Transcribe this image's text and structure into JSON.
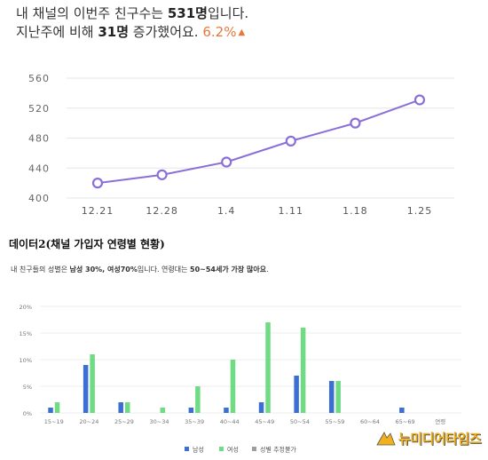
{
  "header": {
    "line1_prefix": "내 채널의 이번주 친구수는 ",
    "line1_value": "531명",
    "line1_suffix": "입니다.",
    "line2_prefix": "지난주에 비해 ",
    "line2_value": "31명",
    "line2_suffix": " 증가했어요. ",
    "change_percent": "6.2%",
    "up_icon": "triangle-up-icon"
  },
  "chart_data": [
    {
      "type": "line",
      "categories": [
        "12.21",
        "12.28",
        "1.4",
        "1.11",
        "1.18",
        "1.25"
      ],
      "values": [
        420,
        431,
        448,
        476,
        500,
        531
      ],
      "ylim": [
        400,
        560
      ],
      "yticks": [
        "400",
        "440",
        "480",
        "520",
        "560"
      ],
      "grid": true,
      "color": "#8b6fd8"
    },
    {
      "type": "bar",
      "categories": [
        "15~19",
        "20~24",
        "25~29",
        "30~34",
        "35~39",
        "40~44",
        "45~49",
        "50~54",
        "55~59",
        "60~64",
        "65~69",
        "연령"
      ],
      "series": [
        {
          "name": "남성",
          "color": "#3b6fd4",
          "values": [
            1,
            9,
            2,
            0,
            1,
            1,
            2,
            7,
            6,
            0,
            1,
            0
          ]
        },
        {
          "name": "여성",
          "color": "#6fdc84",
          "values": [
            2,
            11,
            2,
            1,
            5,
            10,
            17,
            16,
            6,
            0,
            0,
            0
          ]
        },
        {
          "name": "성별 추정불가",
          "color": "#9e9e9e",
          "values": [
            0,
            0,
            0,
            0,
            0,
            0,
            0,
            0,
            0,
            0,
            0,
            0
          ]
        }
      ],
      "ylim": [
        0,
        20
      ],
      "yticks": [
        "0%",
        "5%",
        "10%",
        "15%",
        "20%"
      ],
      "grid": true,
      "legend": "bottom"
    }
  ],
  "section": {
    "title": "데이터2(채널 가입자 연령별 현황)"
  },
  "summary": {
    "prefix": "내 친구들의 성별은 ",
    "male": "남성 30%",
    "sep": ", ",
    "female": "여성70%",
    "middle": "입니다. 연령대는 ",
    "age": "50~54세가 가장 많아요",
    "suffix": "."
  },
  "watermark": {
    "text": "뉴미디어타임즈",
    "icon": "logo-arrow-icon"
  }
}
